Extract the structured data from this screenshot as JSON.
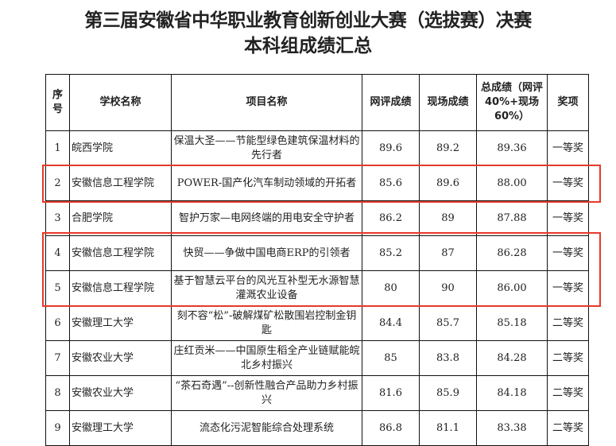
{
  "title": {
    "line1": "第三届安徽省中华职业教育创新创业大赛（选拔赛）决赛",
    "line2": "本科组成绩汇总"
  },
  "headers": [
    "序号",
    "学校名称",
    "项目名称",
    "网评成绩",
    "现场成绩",
    "总成绩（网评40%+现场60%）",
    "奖项"
  ],
  "rows": [
    [
      "1",
      "皖西学院",
      "保温大圣——节能型绿色建筑保温材料的先行者",
      "89.6",
      "89.2",
      "89.36",
      "一等奖"
    ],
    [
      "2",
      "安徽信息工程学院",
      "POWER-国产化汽车制动领域的开拓者",
      "85.6",
      "89.6",
      "88.00",
      "一等奖"
    ],
    [
      "3",
      "合肥学院",
      "智护万家—电网终端的用电安全守护者",
      "86.2",
      "89",
      "87.88",
      "一等奖"
    ],
    [
      "4",
      "安徽信息工程学院",
      "快贸——争做中国电商ERP的引领者",
      "85.2",
      "87",
      "86.28",
      "一等奖"
    ],
    [
      "5",
      "安徽信息工程学院",
      "基于智慧云平台的风光互补型无水源智慧灌溉农业设备",
      "80",
      "90",
      "86.00",
      "一等奖"
    ],
    [
      "6",
      "安徽理工大学",
      "刻不容“松”-破解煤矿松散围岩控制金钥匙",
      "84.4",
      "85.7",
      "85.18",
      "二等奖"
    ],
    [
      "7",
      "安徽农业大学",
      "庄红贡米——中国原生稻全产业链赋能皖北乡村振兴",
      "85",
      "83.8",
      "84.28",
      "二等奖"
    ],
    [
      "8",
      "安徽农业大学",
      "“茶石奇遇”--创新性融合产品助力乡村振兴",
      "81.6",
      "85.9",
      "84.18",
      "二等奖"
    ],
    [
      "9",
      "安徽理工大学",
      "流态化污泥智能综合处理系统",
      "86.8",
      "81.1",
      "83.38",
      "二等奖"
    ]
  ],
  "highlight_color": "#e53a2a"
}
